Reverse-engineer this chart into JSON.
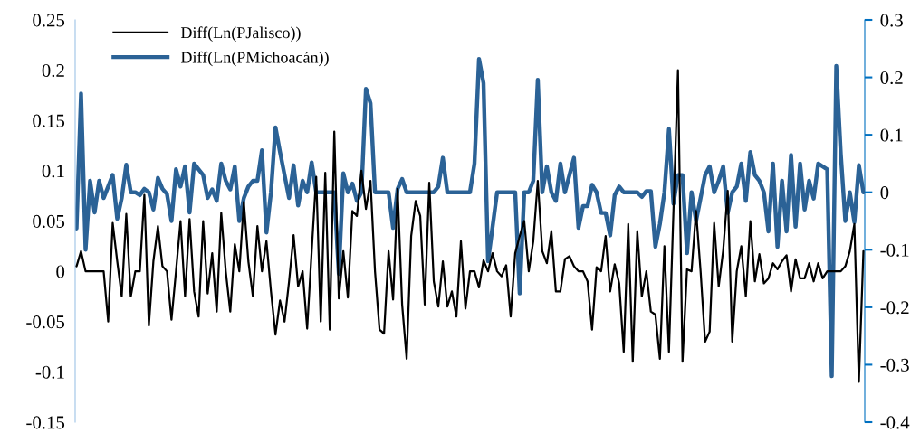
{
  "chart_data": {
    "type": "line",
    "categories": [
      null,
      null,
      null,
      null,
      null,
      null,
      null,
      null,
      null,
      null,
      null,
      null,
      null,
      null,
      null,
      null,
      null,
      null,
      null,
      null,
      null,
      null,
      null,
      null,
      null,
      null,
      null,
      null,
      null,
      null,
      null,
      null,
      null,
      null,
      null,
      null,
      null,
      null,
      null,
      null,
      null,
      null,
      null,
      null,
      null,
      null,
      null,
      null,
      null,
      null,
      null,
      null,
      null,
      null,
      null,
      null,
      null,
      null,
      null,
      null,
      null,
      null,
      null,
      null,
      null,
      null,
      null,
      null,
      null,
      null,
      null,
      null,
      null,
      null,
      null,
      null,
      null,
      null,
      null,
      null,
      null,
      null,
      null,
      null,
      null,
      null,
      null,
      null,
      null,
      null,
      null,
      null,
      null,
      null,
      null,
      null,
      null,
      null,
      null,
      null,
      null,
      null,
      null,
      null,
      null,
      null,
      null,
      null,
      null,
      null,
      null,
      null,
      null,
      null,
      null,
      null,
      null,
      null,
      null,
      null,
      null,
      null,
      null,
      null,
      null,
      null,
      null,
      null,
      null,
      null,
      null,
      null,
      null,
      null,
      null,
      null,
      null,
      null,
      null,
      null,
      null,
      null,
      null,
      null,
      null,
      null,
      null,
      null,
      null,
      null,
      null,
      null,
      null,
      null,
      null,
      null,
      null,
      null,
      null,
      null,
      null,
      null,
      null,
      null,
      null,
      null,
      null,
      null,
      null,
      null,
      null,
      null,
      null,
      null,
      null
    ],
    "ylim": [
      -0.15,
      0.25
    ],
    "yticks": [
      -0.15,
      -0.1,
      -0.05,
      0,
      0.05,
      0.1,
      0.15,
      0.2,
      0.25
    ],
    "y2lim": [
      -0.4,
      0.3
    ],
    "y2ticks": [
      -0.4,
      -0.3,
      -0.2,
      -0.1,
      0,
      0.1,
      0.2,
      0.3
    ],
    "legend": "top left",
    "marker": "none",
    "line_style": "solid",
    "series": [
      {
        "name": "Diff(Ln(PJalisco))",
        "color": "#000000",
        "axis": "y",
        "values": [
          0.005,
          0.02,
          0,
          0,
          0,
          0,
          0,
          -0.05,
          0.048,
          0.01,
          -0.025,
          0.057,
          -0.025,
          0,
          0,
          0.076,
          -0.054,
          0.01,
          0.045,
          0.005,
          0,
          -0.048,
          0,
          0.05,
          -0.025,
          0.052,
          -0.02,
          -0.045,
          0.05,
          -0.022,
          0.018,
          -0.04,
          0.058,
          0,
          -0.04,
          0.027,
          0,
          0.069,
          0.01,
          -0.025,
          0.045,
          0,
          0.03,
          -0.02,
          -0.063,
          -0.029,
          -0.05,
          -0.01,
          0.036,
          -0.015,
          0,
          -0.057,
          0.02,
          0.094,
          -0.05,
          0.098,
          -0.058,
          0.139,
          -0.027,
          0.02,
          -0.026,
          0.06,
          0.055,
          0.1,
          0.062,
          0.09,
          0,
          -0.058,
          -0.062,
          0.02,
          -0.028,
          0.082,
          -0.033,
          -0.087,
          0.035,
          0.07,
          0.055,
          -0.033,
          0.088,
          -0.01,
          -0.035,
          0.01,
          -0.035,
          -0.02,
          -0.045,
          0.03,
          -0.037,
          0,
          0,
          -0.016,
          0.011,
          0,
          0.018,
          0,
          -0.005,
          0.006,
          -0.045,
          0.018,
          0.035,
          0.05,
          0,
          0.03,
          0.09,
          0.02,
          0.008,
          0.04,
          -0.02,
          -0.02,
          0.012,
          0.015,
          0.005,
          0,
          0,
          -0.01,
          -0.058,
          0.004,
          0,
          0.035,
          -0.02,
          0.007,
          -0.012,
          -0.08,
          0.047,
          -0.09,
          0.04,
          -0.025,
          0,
          -0.04,
          -0.043,
          -0.087,
          0.025,
          -0.08,
          0.06,
          0.2,
          -0.09,
          0.002,
          0,
          0.06,
          0,
          -0.07,
          -0.06,
          0.048,
          -0.015,
          0.021,
          0.08,
          -0.07,
          0,
          0.025,
          -0.025,
          0.05,
          -0.01,
          0.017,
          -0.012,
          -0.007,
          0.008,
          0.002,
          0.01,
          0.016,
          -0.02,
          0.012,
          -0.007,
          -0.007,
          0.008,
          -0.01,
          0.008,
          -0.007,
          0,
          0,
          0,
          0,
          0.005,
          0.02,
          0.047,
          -0.11,
          0.02
        ]
      },
      {
        "name": "Diff(Ln(PMichoacán))",
        "color": "#2b6296",
        "axis": "y2",
        "values": [
          -0.063,
          0.172,
          -0.1,
          0.02,
          -0.035,
          0.02,
          -0.01,
          0.01,
          0.03,
          -0.046,
          -0.01,
          0.048,
          0,
          0,
          -0.005,
          0.006,
          0,
          -0.03,
          0.025,
          0.006,
          -0.003,
          -0.05,
          0.04,
          0.01,
          0.045,
          -0.035,
          0.05,
          0.04,
          0.03,
          -0.01,
          0.005,
          -0.015,
          0.05,
          0.02,
          0.005,
          0.045,
          -0.05,
          -0.01,
          0.01,
          0.02,
          0.02,
          0.073,
          -0.07,
          0,
          0.113,
          0.07,
          0.03,
          -0.01,
          0.047,
          -0.023,
          0.02,
          0,
          0.052,
          0,
          0,
          0,
          0,
          0,
          -0.142,
          0.033,
          0,
          0.015,
          -0.015,
          0,
          0.18,
          0.155,
          0,
          0,
          0,
          0,
          -0.062,
          0.006,
          0.023,
          0,
          0,
          0,
          0,
          0,
          0,
          0,
          0.01,
          0.06,
          0,
          0,
          0,
          0,
          0,
          0,
          0.05,
          0.232,
          0.19,
          -0.12,
          -0.06,
          0,
          0,
          0,
          0,
          0,
          -0.176,
          0,
          0,
          0.02,
          0.196,
          0,
          0.045,
          0,
          -0.015,
          0.05,
          0,
          0.03,
          0.06,
          -0.062,
          -0.024,
          -0.024,
          0.013,
          0,
          -0.036,
          -0.036,
          -0.075,
          -0.005,
          0.01,
          0,
          0,
          0,
          0,
          -0.008,
          0.002,
          0.002,
          -0.095,
          -0.055,
          0,
          0.11,
          -0.02,
          0.03,
          0.03,
          -0.106,
          0,
          -0.05,
          -0.01,
          0.03,
          0.045,
          0,
          0.02,
          0.045,
          -0.036,
          0,
          0.01,
          0.05,
          -0.015,
          0.07,
          0.03,
          0.02,
          0,
          -0.068,
          0.05,
          -0.095,
          0.02,
          -0.068,
          0.065,
          -0.06,
          0.05,
          -0.03,
          0.02,
          -0.011,
          0.05,
          0.045,
          0.04,
          -0.32,
          0.22,
          0.066,
          -0.05,
          0,
          -0.052,
          0.047,
          0
        ]
      }
    ]
  }
}
